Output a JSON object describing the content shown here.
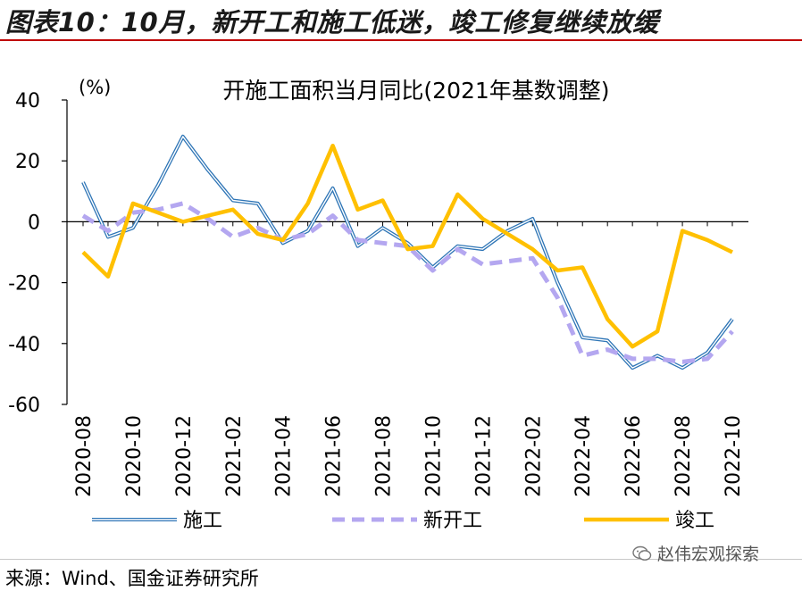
{
  "header": {
    "title": "图表10：10月，新开工和施工低迷，竣工修复继续放缓"
  },
  "source": "来源：Wind、国金证券研究所",
  "watermark": "赵伟宏观探索",
  "chart_data": {
    "type": "line",
    "title": "开施工面积当月同比(2021年基数调整)",
    "ylabel": "(%)",
    "xlabel": "",
    "ylim": [
      -60,
      40
    ],
    "yticks": [
      40,
      20,
      0,
      -20,
      -40,
      -60
    ],
    "x": [
      "2020-08",
      "2020-09",
      "2020-10",
      "2020-11",
      "2020-12",
      "2021-01",
      "2021-02",
      "2021-03",
      "2021-04",
      "2021-05",
      "2021-06",
      "2021-07",
      "2021-08",
      "2021-09",
      "2021-10",
      "2021-11",
      "2021-12",
      "2022-01",
      "2022-02",
      "2022-03",
      "2022-04",
      "2022-05",
      "2022-06",
      "2022-07",
      "2022-08",
      "2022-09",
      "2022-10"
    ],
    "xtick_labels": [
      "2020-08",
      "2020-10",
      "2020-12",
      "2021-02",
      "2021-04",
      "2021-06",
      "2021-08",
      "2021-10",
      "2021-12",
      "2022-02",
      "2022-04",
      "2022-06",
      "2022-08",
      "2022-10"
    ],
    "grid": false,
    "legend_position": "bottom",
    "series": [
      {
        "name": "施工",
        "color": "#2e75b6",
        "style": "double",
        "values": [
          13,
          -5,
          -2,
          12,
          28,
          17,
          7,
          6,
          -7,
          -3,
          11,
          -8,
          -2,
          -7,
          -15,
          -8,
          -9,
          -3,
          1,
          -20,
          -38,
          -39,
          -48,
          -44,
          -48,
          -43,
          -32
        ]
      },
      {
        "name": "新开工",
        "color": "#b4a7f0",
        "style": "dashed",
        "values": [
          2,
          -3,
          3,
          4,
          6,
          1,
          -5,
          -2,
          -6,
          -4,
          2,
          -6,
          -7,
          -8,
          -16,
          -9,
          -14,
          -13,
          -12,
          -25,
          -44,
          -42,
          -45,
          -45,
          -46,
          -45,
          -36
        ]
      },
      {
        "name": "竣工",
        "color": "#ffc000",
        "style": "solid",
        "values": [
          -10,
          -18,
          6,
          3,
          0,
          2,
          4,
          -4,
          -6,
          6,
          25,
          4,
          7,
          -9,
          -8,
          9,
          1,
          -4,
          -9,
          -16,
          -15,
          -32,
          -41,
          -36,
          -3,
          -6,
          -10
        ]
      }
    ]
  }
}
